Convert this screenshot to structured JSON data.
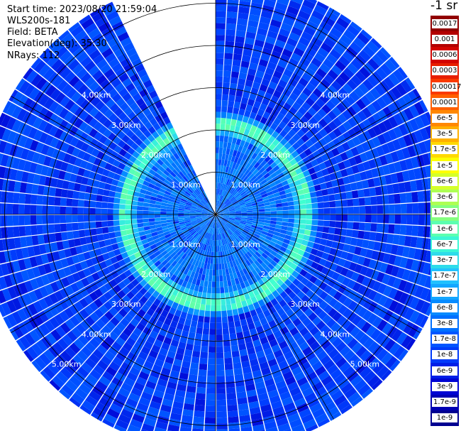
{
  "header": {
    "start_time": "Start time: 2023/08/20 21:59:04",
    "instrument": "WLS200s-181",
    "field": "Field: BETA",
    "elevation": "Elevation(deg): 35.30",
    "nrays": "NRays: 112"
  },
  "chart_data": {
    "type": "heatmap",
    "projection": "polar (PPI scan)",
    "field": "BETA",
    "elevation_deg": 35.3,
    "n_rays": 112,
    "range_rings_km": [
      1,
      2,
      3,
      4,
      5
    ],
    "ring_labels": [
      "1.00km",
      "2.00km",
      "3.00km",
      "4.00km",
      "5.00km"
    ],
    "spoke_step_deg": 30,
    "max_range_km": 5.6,
    "missing_sector_deg": [
      333,
      360
    ],
    "background_beta": 8e-09,
    "enhanced_layer": {
      "range_km": 2.2,
      "beta": 1e-06
    },
    "colorbar": {
      "unit_label": "-1 sr",
      "labels": [
        "0.0017",
        "0.001",
        "0.0006",
        "0.0003",
        "0.00017",
        "0.0001",
        "6e-5",
        "3e-5",
        "1.7e-5",
        "1e-5",
        "6e-6",
        "3e-6",
        "1.7e-6",
        "1e-6",
        "6e-7",
        "3e-7",
        "1.7e-7",
        "1e-7",
        "6e-8",
        "3e-8",
        "1.7e-8",
        "1e-8",
        "6e-9",
        "3e-9",
        "1.7e-9",
        "1e-9"
      ],
      "range": [
        1e-09,
        0.0017
      ],
      "scale": "log"
    }
  },
  "colors": {
    "background": "#ffffff",
    "ring_color": "#000000",
    "label_color": "#ffffff",
    "colormap": [
      "#000080",
      "#0000d0",
      "#0040ff",
      "#0080ff",
      "#20c0ff",
      "#40ffd0",
      "#a0ff60",
      "#ffff00",
      "#ffa000",
      "#ff4000",
      "#d00000",
      "#800000"
    ]
  }
}
